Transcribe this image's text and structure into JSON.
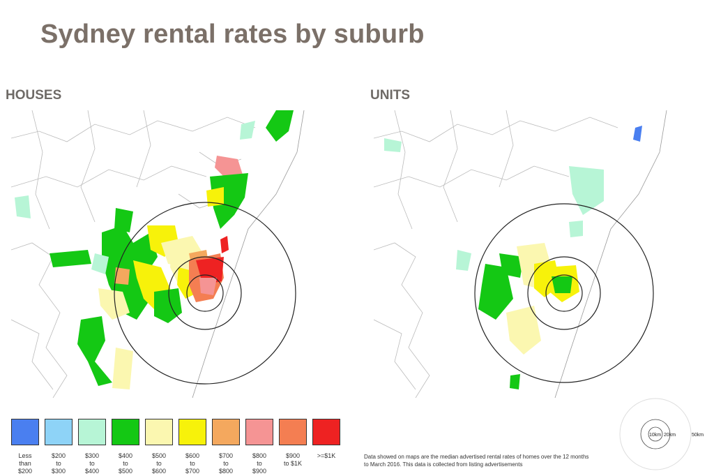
{
  "title": "Sydney rental rates by suburb",
  "panels": {
    "houses_label": "HOUSES",
    "units_label": "UNITS"
  },
  "legend": [
    {
      "label": "Less\nthan\n$200",
      "color": "#4a7ff0"
    },
    {
      "label": "$200\nto\n$300",
      "color": "#8ed3f7"
    },
    {
      "label": "$300\nto\n$400",
      "color": "#b7f5d6"
    },
    {
      "label": "$400\nto\n$500",
      "color": "#14c814"
    },
    {
      "label": "$500\nto\n$600",
      "color": "#fbf7b0"
    },
    {
      "label": "$600\nto\n$700",
      "color": "#f7f20a"
    },
    {
      "label": "$700\nto\n$800",
      "color": "#f4a85e"
    },
    {
      "label": "$800\nto\n$900",
      "color": "#f59494"
    },
    {
      "label": "$900\nto $1K",
      "color": "#f47e52"
    },
    {
      "label": ">=$1K",
      "color": "#ee2222"
    }
  ],
  "note": "Data showed on maps are the median advertised rental rates of homes over the 12 months to March 2016. This data is collected from listing advertisements",
  "scale_labels": {
    "r10": "10km",
    "r20": "20km",
    "r50": "50km"
  }
}
